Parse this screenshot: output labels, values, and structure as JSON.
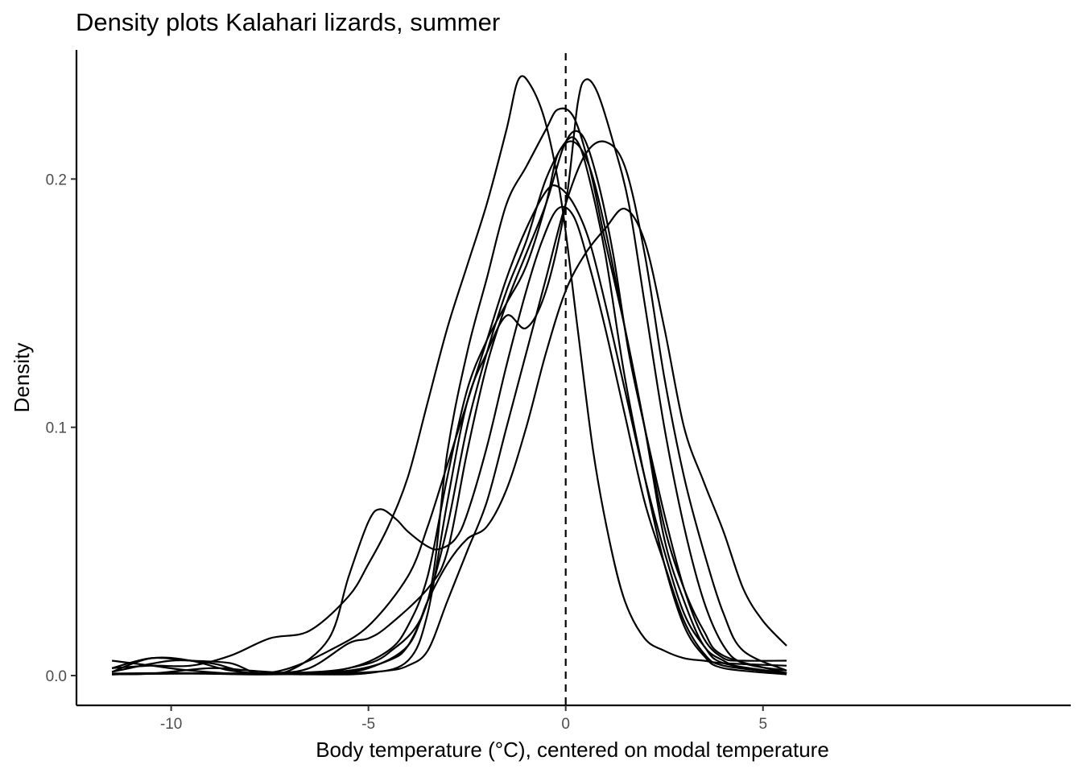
{
  "chart_data": {
    "type": "line",
    "title": "Density plots Kalahari lizards, summer",
    "xlabel": "Body temperature (°C), centered on modal temperature",
    "ylabel": "Density",
    "xlim": [
      -12.4,
      12.8
    ],
    "ylim": [
      -0.012,
      0.252
    ],
    "x_ticks": [
      -10,
      -5,
      0,
      5
    ],
    "x_tick_labels": [
      "-10",
      "-5",
      "0",
      "5"
    ],
    "y_ticks": [
      0.0,
      0.1,
      0.2
    ],
    "y_tick_labels": [
      "0.0",
      "0.1",
      "0.2"
    ],
    "reference_line": {
      "x": 0,
      "style": "dashed"
    },
    "grid": false,
    "legend": "none",
    "series": [
      {
        "points": [
          [
            -11.5,
            0.006
          ],
          [
            -10.5,
            0.004
          ],
          [
            -9.5,
            0.002
          ],
          [
            -8.0,
            0.0005
          ],
          [
            -6.5,
            0.001
          ],
          [
            -5.5,
            0.003
          ],
          [
            -4.5,
            0.009
          ],
          [
            -3.5,
            0.03
          ],
          [
            -3.0,
            0.09
          ],
          [
            -2.5,
            0.13
          ],
          [
            -2.0,
            0.16
          ],
          [
            -1.5,
            0.19
          ],
          [
            -1.0,
            0.205
          ],
          [
            -0.5,
            0.22
          ],
          [
            -0.2,
            0.228
          ],
          [
            0.2,
            0.225
          ],
          [
            0.6,
            0.205
          ],
          [
            1.0,
            0.175
          ],
          [
            1.5,
            0.14
          ],
          [
            2.0,
            0.1
          ],
          [
            2.5,
            0.055
          ],
          [
            3.0,
            0.03
          ],
          [
            3.5,
            0.012
          ],
          [
            4.0,
            0.006
          ],
          [
            4.5,
            0.003
          ],
          [
            5.6,
            0.001
          ]
        ]
      },
      {
        "points": [
          [
            -11.5,
            0.0005
          ],
          [
            -10,
            0.001
          ],
          [
            -8.0,
            0.0008
          ],
          [
            -6.5,
            0.0005
          ],
          [
            -5.0,
            0.001
          ],
          [
            -4.0,
            0.006
          ],
          [
            -3.5,
            0.025
          ],
          [
            -3.0,
            0.07
          ],
          [
            -2.5,
            0.11
          ],
          [
            -2.0,
            0.13
          ],
          [
            -1.5,
            0.145
          ],
          [
            -1.0,
            0.14
          ],
          [
            -0.5,
            0.155
          ],
          [
            0.0,
            0.19
          ],
          [
            0.3,
            0.23
          ],
          [
            0.5,
            0.24
          ],
          [
            0.8,
            0.235
          ],
          [
            1.2,
            0.215
          ],
          [
            1.6,
            0.19
          ],
          [
            2.0,
            0.15
          ],
          [
            2.5,
            0.1
          ],
          [
            3.0,
            0.06
          ],
          [
            3.5,
            0.03
          ],
          [
            4.0,
            0.012
          ],
          [
            4.5,
            0.005
          ],
          [
            5.6,
            0.002
          ]
        ]
      },
      {
        "points": [
          [
            -11.5,
            0.0005
          ],
          [
            -10,
            0.0008
          ],
          [
            -8.5,
            0.0008
          ],
          [
            -7.0,
            0.001
          ],
          [
            -5.5,
            0.002
          ],
          [
            -4.5,
            0.006
          ],
          [
            -4.0,
            0.012
          ],
          [
            -3.5,
            0.03
          ],
          [
            -3.0,
            0.06
          ],
          [
            -2.5,
            0.1
          ],
          [
            -2.0,
            0.13
          ],
          [
            -1.5,
            0.155
          ],
          [
            -1.0,
            0.175
          ],
          [
            -0.5,
            0.2
          ],
          [
            0.0,
            0.215
          ],
          [
            0.3,
            0.215
          ],
          [
            0.6,
            0.2
          ],
          [
            1.0,
            0.17
          ],
          [
            1.5,
            0.12
          ],
          [
            2.0,
            0.08
          ],
          [
            2.5,
            0.045
          ],
          [
            3.0,
            0.02
          ],
          [
            3.5,
            0.008
          ],
          [
            4.0,
            0.003
          ],
          [
            5.6,
            0.0005
          ]
        ]
      },
      {
        "points": [
          [
            -11.5,
            0.0015
          ],
          [
            -10.5,
            0.007
          ],
          [
            -9.5,
            0.006
          ],
          [
            -8.5,
            0.002
          ],
          [
            -7.5,
            0.001
          ],
          [
            -6.5,
            0.003
          ],
          [
            -5.5,
            0.013
          ],
          [
            -5.0,
            0.015
          ],
          [
            -4.5,
            0.02
          ],
          [
            -3.5,
            0.035
          ],
          [
            -3.0,
            0.05
          ],
          [
            -2.5,
            0.09
          ],
          [
            -2.0,
            0.125
          ],
          [
            -1.5,
            0.15
          ],
          [
            -1.0,
            0.17
          ],
          [
            -0.5,
            0.19
          ],
          [
            0.0,
            0.215
          ],
          [
            0.4,
            0.218
          ],
          [
            0.8,
            0.2
          ],
          [
            1.2,
            0.17
          ],
          [
            1.6,
            0.13
          ],
          [
            2.0,
            0.1
          ],
          [
            2.5,
            0.065
          ],
          [
            3.0,
            0.035
          ],
          [
            3.5,
            0.015
          ],
          [
            4.0,
            0.007
          ],
          [
            4.5,
            0.006
          ],
          [
            5.6,
            0.006
          ]
        ]
      },
      {
        "points": [
          [
            -11.5,
            0.0005
          ],
          [
            -9.5,
            0.0008
          ],
          [
            -8,
            0.0005
          ],
          [
            -6.5,
            0.0008
          ],
          [
            -5.5,
            0.001
          ],
          [
            -4.5,
            0.002
          ],
          [
            -4.0,
            0.004
          ],
          [
            -3.5,
            0.01
          ],
          [
            -3.0,
            0.03
          ],
          [
            -2.5,
            0.05
          ],
          [
            -2.0,
            0.07
          ],
          [
            -1.5,
            0.1
          ],
          [
            -1.0,
            0.13
          ],
          [
            -0.5,
            0.16
          ],
          [
            0.0,
            0.19
          ],
          [
            0.5,
            0.21
          ],
          [
            1.0,
            0.215
          ],
          [
            1.5,
            0.205
          ],
          [
            2.0,
            0.17
          ],
          [
            2.5,
            0.12
          ],
          [
            3.0,
            0.08
          ],
          [
            3.5,
            0.05
          ],
          [
            4.0,
            0.025
          ],
          [
            4.5,
            0.01
          ],
          [
            5.6,
            0.002
          ]
        ]
      },
      {
        "points": [
          [
            -11.5,
            0.0005
          ],
          [
            -10.5,
            0.0008
          ],
          [
            -9.0,
            0.003
          ],
          [
            -8.0,
            0.002
          ],
          [
            -7.0,
            0.001
          ],
          [
            -6.0,
            0.001
          ],
          [
            -5.0,
            0.003
          ],
          [
            -4.0,
            0.012
          ],
          [
            -3.5,
            0.03
          ],
          [
            -3.0,
            0.045
          ],
          [
            -2.5,
            0.055
          ],
          [
            -2.0,
            0.06
          ],
          [
            -1.5,
            0.075
          ],
          [
            -1.0,
            0.1
          ],
          [
            -0.5,
            0.13
          ],
          [
            0.0,
            0.155
          ],
          [
            0.5,
            0.17
          ],
          [
            1.0,
            0.18
          ],
          [
            1.5,
            0.188
          ],
          [
            2.0,
            0.175
          ],
          [
            2.5,
            0.14
          ],
          [
            3.0,
            0.1
          ],
          [
            3.5,
            0.078
          ],
          [
            4.0,
            0.058
          ],
          [
            4.5,
            0.035
          ],
          [
            5.0,
            0.022
          ],
          [
            5.6,
            0.012
          ]
        ]
      },
      {
        "points": [
          [
            -11.5,
            0.0008
          ],
          [
            -10,
            0.001
          ],
          [
            -8.5,
            0.0008
          ],
          [
            -7.0,
            0.001
          ],
          [
            -5.5,
            0.003
          ],
          [
            -4.5,
            0.01
          ],
          [
            -4.0,
            0.02
          ],
          [
            -3.5,
            0.04
          ],
          [
            -3.0,
            0.08
          ],
          [
            -2.5,
            0.115
          ],
          [
            -2.0,
            0.135
          ],
          [
            -1.5,
            0.15
          ],
          [
            -1.0,
            0.165
          ],
          [
            -0.5,
            0.19
          ],
          [
            -0.2,
            0.21
          ],
          [
            0.2,
            0.215
          ],
          [
            0.6,
            0.205
          ],
          [
            1.0,
            0.18
          ],
          [
            1.5,
            0.14
          ],
          [
            2.0,
            0.1
          ],
          [
            2.5,
            0.06
          ],
          [
            3.0,
            0.035
          ],
          [
            3.5,
            0.018
          ],
          [
            4.0,
            0.008
          ],
          [
            5.6,
            0.001
          ]
        ]
      },
      {
        "points": [
          [
            -11.5,
            0.003
          ],
          [
            -10.5,
            0.007
          ],
          [
            -9.5,
            0.006
          ],
          [
            -8.5,
            0.005
          ],
          [
            -7.8,
            0.001
          ],
          [
            -7.0,
            0.003
          ],
          [
            -6.0,
            0.01
          ],
          [
            -5.0,
            0.02
          ],
          [
            -4.0,
            0.04
          ],
          [
            -3.5,
            0.06
          ],
          [
            -3.0,
            0.085
          ],
          [
            -2.5,
            0.11
          ],
          [
            -2.0,
            0.135
          ],
          [
            -1.5,
            0.16
          ],
          [
            -1.0,
            0.18
          ],
          [
            -0.5,
            0.195
          ],
          [
            -0.2,
            0.197
          ],
          [
            0.2,
            0.19
          ],
          [
            0.6,
            0.175
          ],
          [
            1.0,
            0.15
          ],
          [
            1.5,
            0.115
          ],
          [
            2.0,
            0.08
          ],
          [
            2.5,
            0.05
          ],
          [
            3.0,
            0.025
          ],
          [
            3.5,
            0.012
          ],
          [
            4.0,
            0.005
          ],
          [
            5.6,
            0.001
          ]
        ]
      },
      {
        "points": [
          [
            -11.5,
            0.0015
          ],
          [
            -10.0,
            0.006
          ],
          [
            -9.0,
            0.005
          ],
          [
            -8.5,
            0.003
          ],
          [
            -8.0,
            0.001
          ],
          [
            -7.0,
            0.002
          ],
          [
            -6.0,
            0.015
          ],
          [
            -5.5,
            0.04
          ],
          [
            -5.0,
            0.062
          ],
          [
            -4.7,
            0.067
          ],
          [
            -4.3,
            0.063
          ],
          [
            -4.0,
            0.058
          ],
          [
            -3.5,
            0.052
          ],
          [
            -3.2,
            0.051
          ],
          [
            -2.8,
            0.055
          ],
          [
            -2.5,
            0.065
          ],
          [
            -2.0,
            0.092
          ],
          [
            -1.5,
            0.125
          ],
          [
            -1.0,
            0.155
          ],
          [
            -0.6,
            0.175
          ],
          [
            -0.2,
            0.188
          ],
          [
            0.2,
            0.185
          ],
          [
            0.6,
            0.165
          ],
          [
            1.0,
            0.14
          ],
          [
            1.5,
            0.105
          ],
          [
            2.0,
            0.07
          ],
          [
            2.5,
            0.045
          ],
          [
            3.0,
            0.022
          ],
          [
            3.5,
            0.009
          ],
          [
            4.0,
            0.004
          ],
          [
            5.6,
            0.001
          ]
        ]
      },
      {
        "points": [
          [
            -11.5,
            0.003
          ],
          [
            -10.5,
            0.004
          ],
          [
            -9.5,
            0.004
          ],
          [
            -8.5,
            0.008
          ],
          [
            -7.5,
            0.015
          ],
          [
            -6.5,
            0.018
          ],
          [
            -5.5,
            0.032
          ],
          [
            -5.0,
            0.045
          ],
          [
            -4.5,
            0.06
          ],
          [
            -4.0,
            0.08
          ],
          [
            -3.5,
            0.11
          ],
          [
            -3.0,
            0.14
          ],
          [
            -2.5,
            0.165
          ],
          [
            -2.0,
            0.19
          ],
          [
            -1.5,
            0.22
          ],
          [
            -1.2,
            0.24
          ],
          [
            -0.9,
            0.238
          ],
          [
            -0.5,
            0.222
          ],
          [
            -0.1,
            0.19
          ],
          [
            0.3,
            0.14
          ],
          [
            0.7,
            0.09
          ],
          [
            1.1,
            0.055
          ],
          [
            1.5,
            0.03
          ],
          [
            2.0,
            0.015
          ],
          [
            2.5,
            0.01
          ],
          [
            3.0,
            0.007
          ],
          [
            3.5,
            0.006
          ],
          [
            4.0,
            0.005
          ],
          [
            5.6,
            0.004
          ]
        ]
      }
    ]
  }
}
